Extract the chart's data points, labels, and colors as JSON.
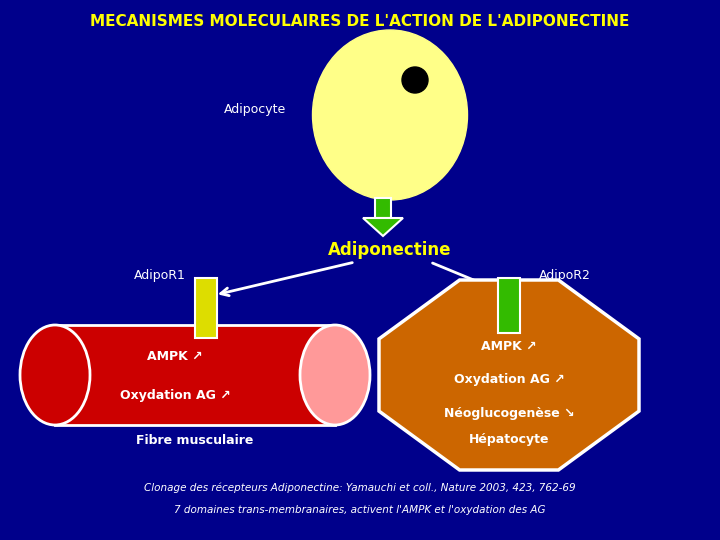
{
  "title": "MECANISMES MOLECULAIRES DE L'ACTION DE L'ADIPONECTINE",
  "title_color": "#FFFF00",
  "bg_color": "#00008B",
  "adipocyte_label": "Adipocyte",
  "adiponectine_label": "Adiponectine",
  "adipor1_label": "AdipoR1",
  "adipor2_label": "AdipoR2",
  "fibre_label": "Fibre musculaire",
  "hepato_label": "Hépatocyte",
  "ampk_up": "AMPK ↗",
  "oxyd_ag_up": "Oxydation AG ↗",
  "neoglyco": "Néoglucogenèse ↘",
  "citation_line1": "Clonage des récepteurs Adiponectine: Yamauchi et coll., Nature 2003, 423, 762-69",
  "citation_line2": "7 domaines trans-membranaires, activent l'AMPK et l'oxydation des AG",
  "text_white": "#FFFFFF",
  "text_yellow": "#FFFF00",
  "green_color": "#33BB00",
  "yellow_receptor": "#DDDD00",
  "red_color": "#CC0000",
  "orange_color": "#CC6600",
  "pink_color": "#FF9999",
  "cell_yellow": "#FFFF88"
}
